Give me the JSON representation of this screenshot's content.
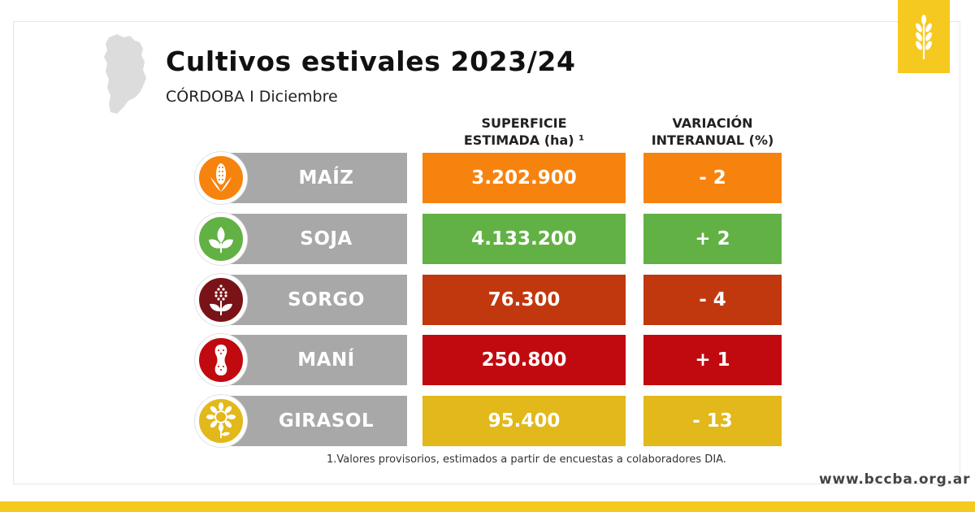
{
  "header": {
    "title": "Cultivos estivales 2023/24",
    "subtitle": "CÓRDOBA I Diciembre"
  },
  "columns": {
    "surface_line1": "SUPERFICIE",
    "surface_line2": "ESTIMADA (ha) ¹",
    "variation_line1": "VARIACIÓN",
    "variation_line2": "INTERANUAL (%)"
  },
  "crops": [
    {
      "name": "MAÍZ",
      "surface": "3.202.900",
      "variation": "- 2",
      "color": "#f7830f",
      "icon": "corn-icon"
    },
    {
      "name": "SOJA",
      "surface": "4.133.200",
      "variation": "+ 2",
      "color": "#62b144",
      "icon": "soy-sprout-icon"
    },
    {
      "name": "SORGO",
      "surface": "76.300",
      "variation": "- 4",
      "color": "#c1380e",
      "icon": "sorghum-icon"
    },
    {
      "name": "MANÍ",
      "surface": "250.800",
      "variation": "+ 1",
      "color": "#c10a0f",
      "icon": "peanut-icon"
    },
    {
      "name": "GIRASOL",
      "surface": "95.400",
      "variation": "- 13",
      "color": "#e2b81a",
      "icon": "sunflower-icon"
    }
  ],
  "colors": {
    "brand_yellow": "#f5c91f",
    "label_gray": "#a8a8a8",
    "sorghum_icon_bg": "#7a1318"
  },
  "footnote": "1.Valores provisorios, estimados a partir de encuestas a colaboradores DIA.",
  "website": "www.bccba.org.ar"
}
